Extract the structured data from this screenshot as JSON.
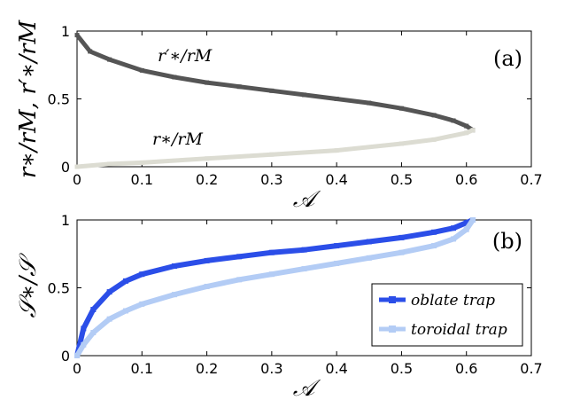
{
  "chart_data": [
    {
      "panel": "(a)",
      "type": "line",
      "xlabel": "𝒜",
      "ylabel": "r∗/rM, r′∗/rM",
      "xlim": [
        0,
        0.7
      ],
      "ylim": [
        0,
        1
      ],
      "xticks": [
        "0",
        "0.1",
        "0.2",
        "0.3",
        "0.4",
        "0.5",
        "0.6",
        "0.7"
      ],
      "yticks": [
        "0",
        "0.5",
        "1"
      ],
      "series": [
        {
          "name": "r′∗/rM",
          "color": "#555555",
          "x": [
            0,
            0.02,
            0.05,
            0.1,
            0.15,
            0.2,
            0.25,
            0.3,
            0.35,
            0.4,
            0.45,
            0.5,
            0.55,
            0.58,
            0.6,
            0.61
          ],
          "y": [
            0.97,
            0.85,
            0.79,
            0.71,
            0.66,
            0.62,
            0.59,
            0.56,
            0.53,
            0.5,
            0.47,
            0.43,
            0.38,
            0.34,
            0.3,
            0.27
          ]
        },
        {
          "name": "r∗/rM",
          "color": "#dcdcd2",
          "x": [
            0,
            0.05,
            0.1,
            0.2,
            0.3,
            0.4,
            0.5,
            0.55,
            0.6,
            0.61
          ],
          "y": [
            0.0,
            0.02,
            0.03,
            0.06,
            0.09,
            0.12,
            0.17,
            0.2,
            0.25,
            0.27
          ]
        }
      ],
      "annotations": [
        "r′∗/rM",
        "r∗/rM"
      ]
    },
    {
      "panel": "(b)",
      "type": "line",
      "xlabel": "𝒜",
      "ylabel": "𝒮∗/𝒮",
      "xlim": [
        0,
        0.7
      ],
      "ylim": [
        0,
        1
      ],
      "xticks": [
        "0",
        "0.1",
        "0.2",
        "0.3",
        "0.4",
        "0.5",
        "0.6",
        "0.7"
      ],
      "yticks": [
        "0",
        "0.5",
        "1"
      ],
      "legend_position": "bottom-right",
      "series": [
        {
          "name": "oblate trap",
          "color": "#2b4ee8",
          "x": [
            0,
            0.01,
            0.025,
            0.05,
            0.075,
            0.1,
            0.15,
            0.2,
            0.25,
            0.3,
            0.35,
            0.4,
            0.45,
            0.5,
            0.55,
            0.58,
            0.6,
            0.61
          ],
          "y": [
            0,
            0.2,
            0.34,
            0.47,
            0.55,
            0.6,
            0.66,
            0.7,
            0.73,
            0.76,
            0.78,
            0.81,
            0.84,
            0.87,
            0.91,
            0.94,
            0.98,
            1.0
          ]
        },
        {
          "name": "toroidal trap",
          "color": "#b3ccf5",
          "x": [
            0,
            0.01,
            0.025,
            0.05,
            0.075,
            0.1,
            0.15,
            0.2,
            0.25,
            0.3,
            0.35,
            0.4,
            0.45,
            0.5,
            0.55,
            0.58,
            0.6,
            0.61
          ],
          "y": [
            0,
            0.08,
            0.17,
            0.27,
            0.33,
            0.38,
            0.45,
            0.51,
            0.56,
            0.6,
            0.64,
            0.68,
            0.72,
            0.76,
            0.81,
            0.86,
            0.93,
            1.0
          ]
        }
      ]
    }
  ]
}
